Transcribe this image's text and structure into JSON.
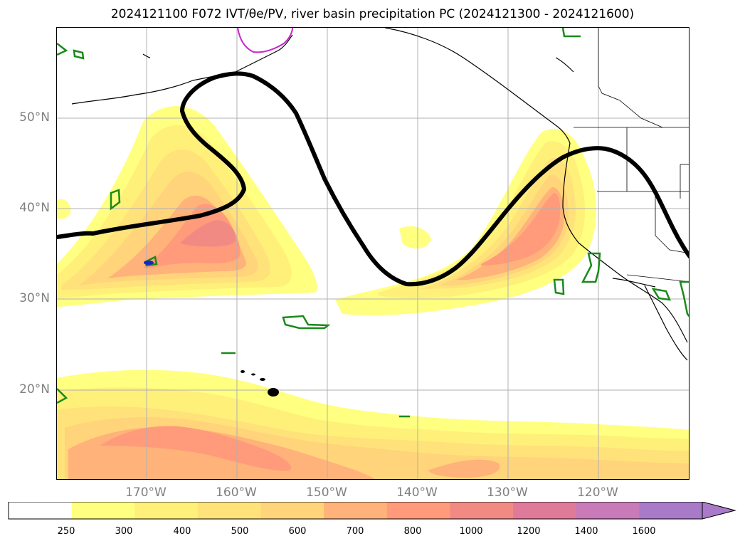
{
  "title": "2024121100 F072 IVT/θe/PV, river basin precipitation PC (2024121300 - 2024121600)",
  "map": {
    "latitude_labels": [
      "50°N",
      "40°N",
      "30°N",
      "20°N"
    ],
    "longitude_labels": [
      "170°W",
      "160°W",
      "150°W",
      "140°W",
      "130°W",
      "120°W"
    ],
    "levels_colors": [
      "#ffffff",
      "#ffff80",
      "#fff07a",
      "#ffe27a",
      "#ffd47a",
      "#ffb27a",
      "#ff9a7a",
      "#f28a84",
      "#e07a9a",
      "#c97ab8",
      "#a87ac8"
    ]
  },
  "colorbar": {
    "ticks": [
      "250",
      "300",
      "400",
      "500",
      "600",
      "700",
      "800",
      "1000",
      "1200",
      "1400",
      "1600"
    ],
    "extend": "max"
  }
}
